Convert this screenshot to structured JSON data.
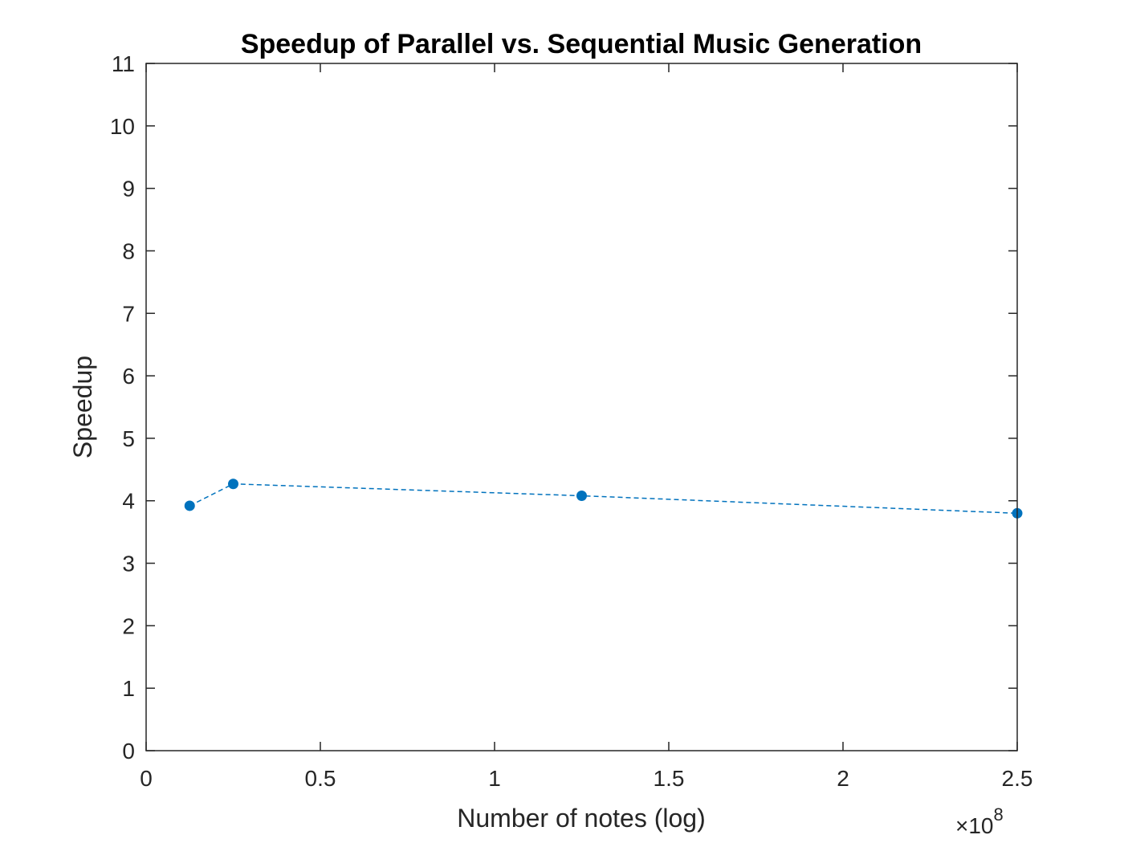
{
  "chart_data": {
    "type": "line",
    "title": "Speedup of Parallel vs. Sequential Music Generation",
    "xlabel": "Number of notes (log)",
    "ylabel": "Speedup",
    "x_exponent_base": "×10",
    "x_exponent_power": "8",
    "xlim": [
      0,
      250000000.0
    ],
    "ylim": [
      0,
      11
    ],
    "x_ticks": [
      0,
      50000000.0,
      100000000.0,
      150000000.0,
      200000000.0,
      250000000.0
    ],
    "x_tick_labels": [
      "0",
      "0.5",
      "1",
      "1.5",
      "2",
      "2.5"
    ],
    "y_ticks": [
      0,
      1,
      2,
      3,
      4,
      5,
      6,
      7,
      8,
      9,
      10,
      11
    ],
    "y_tick_labels": [
      "0",
      "1",
      "2",
      "3",
      "4",
      "5",
      "6",
      "7",
      "8",
      "9",
      "10",
      "11"
    ],
    "grid": false,
    "series": [
      {
        "color": "#0072BD",
        "line_style": "dashed",
        "marker": "circle",
        "x": [
          12500000,
          25000000,
          125000000,
          250000000
        ],
        "y": [
          3.92,
          4.27,
          4.08,
          3.8
        ]
      }
    ]
  }
}
